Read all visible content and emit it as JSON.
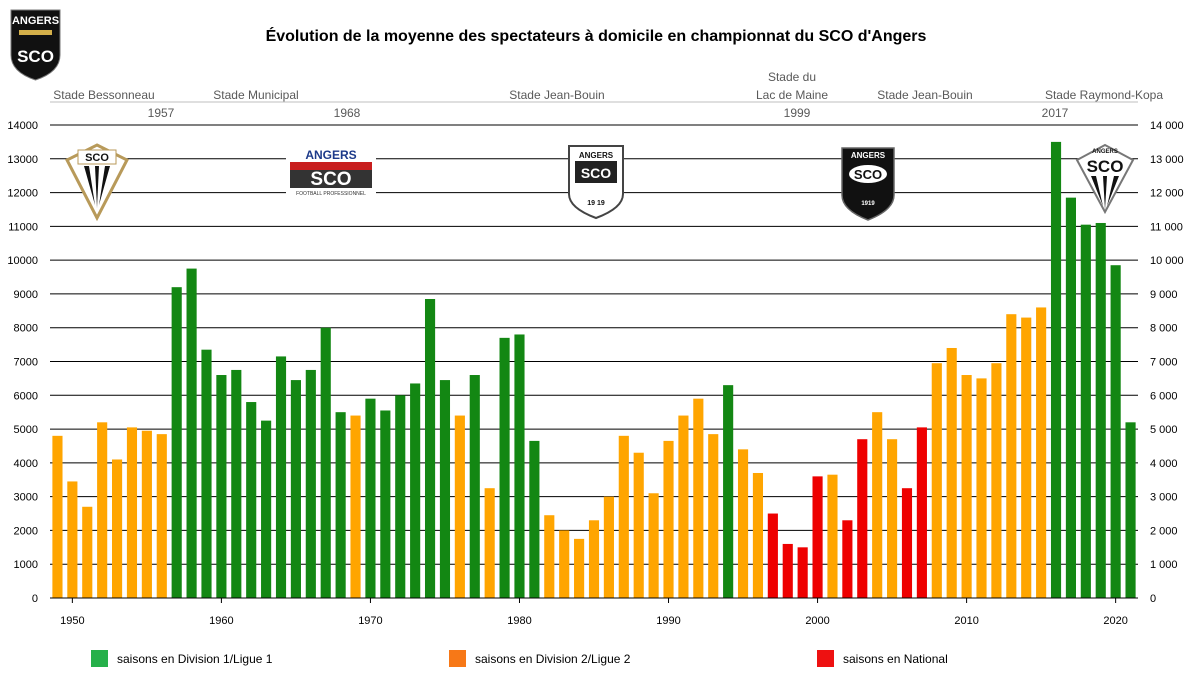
{
  "colors": {
    "d1": "#138713",
    "d2": "#FFA500",
    "national": "#EE0000",
    "legend_d1": "#26B04A",
    "legend_d2": "#F77817",
    "legend_national": "#EE1111"
  },
  "logos": {
    "club_top": {
      "line1": "ANGERS",
      "line2": "SCO"
    },
    "sco_1": {
      "text": "SCO"
    },
    "sco_2": {
      "line1": "ANGERS",
      "line2": "SCO",
      "line3": "FOOTBALL PROFESSIONNEL"
    },
    "sco_3": {
      "line1": "ANGERS",
      "line2": "SCO",
      "line3": "19 19"
    },
    "sco_4": {
      "line1": "ANGERS",
      "line2": "SCO",
      "line3": "1919"
    },
    "sco_5": {
      "line1": "ANGERS",
      "line2": "SCO"
    }
  },
  "stadiums": [
    {
      "name": "Stade Bessonneau",
      "year": "1957"
    },
    {
      "name": "Stade Municipal",
      "year": "1968"
    },
    {
      "name": "Stade Jean-Bouin",
      "year": ""
    },
    {
      "name_line1": "Stade du",
      "name": "Lac de Maine",
      "year": "1999"
    },
    {
      "name": "Stade Jean-Bouin",
      "year": ""
    },
    {
      "name": "Stade Raymond-Kopa",
      "year": "2017"
    }
  ],
  "chart_data": {
    "type": "bar",
    "title": "Évolution de la moyenne des spectateurs à domicile en championnat du SCO d'Angers",
    "xlabel": "",
    "ylabel": "",
    "ylim": [
      0,
      14000
    ],
    "xlim": [
      1948.5,
      2021.5
    ],
    "yticks": [
      0,
      1000,
      2000,
      3000,
      4000,
      5000,
      6000,
      7000,
      8000,
      9000,
      10000,
      11000,
      12000,
      13000,
      14000
    ],
    "ytick_labels_left": [
      "0",
      "1000",
      "2000",
      "3000",
      "4000",
      "5000",
      "6000",
      "7000",
      "8000",
      "9000",
      "10000",
      "11000",
      "12000",
      "13000",
      "14000"
    ],
    "ytick_labels_right": [
      "0",
      "1 000",
      "2 000",
      "3 000",
      "4 000",
      "5 000",
      "6 000",
      "7 000",
      "8 000",
      "9 000",
      "10 000",
      "11 000",
      "12 000",
      "13 000",
      "14 000"
    ],
    "xticks": [
      1950,
      1960,
      1970,
      1980,
      1990,
      2000,
      2010,
      2020
    ],
    "xtick_labels": [
      "1950",
      "1960",
      "1970",
      "1980",
      "1990",
      "2000",
      "2010",
      "2020"
    ],
    "grid": true,
    "legend_position": "bottom",
    "legend": [
      {
        "key": "d1",
        "label": "saisons en Division 1/Ligue 1"
      },
      {
        "key": "d2",
        "label": "saisons en Division 2/Ligue 2"
      },
      {
        "key": "national",
        "label": "saisons en National"
      }
    ],
    "years": [
      1949,
      1950,
      1951,
      1952,
      1953,
      1954,
      1955,
      1956,
      1957,
      1958,
      1959,
      1960,
      1961,
      1962,
      1963,
      1964,
      1965,
      1966,
      1967,
      1968,
      1969,
      1970,
      1971,
      1972,
      1973,
      1974,
      1975,
      1976,
      1977,
      1978,
      1979,
      1980,
      1981,
      1982,
      1983,
      1984,
      1985,
      1986,
      1987,
      1988,
      1989,
      1990,
      1991,
      1992,
      1993,
      1994,
      1995,
      1996,
      1997,
      1998,
      1999,
      2000,
      2001,
      2002,
      2003,
      2004,
      2005,
      2006,
      2007,
      2008,
      2009,
      2010,
      2011,
      2012,
      2013,
      2014,
      2015,
      2016,
      2017,
      2018,
      2019,
      2020,
      2021
    ],
    "values": [
      4800,
      3450,
      2700,
      5200,
      4100,
      5050,
      4950,
      4850,
      9200,
      9750,
      7350,
      6600,
      6750,
      5800,
      5250,
      7150,
      6450,
      6750,
      8000,
      5500,
      5400,
      5900,
      5550,
      6000,
      6350,
      8850,
      6450,
      5400,
      6600,
      3250,
      7700,
      7800,
      4650,
      2450,
      2000,
      1750,
      2300,
      3000,
      4800,
      4300,
      3100,
      4650,
      5400,
      5900,
      4850,
      6300,
      4400,
      3700,
      2500,
      1600,
      1500,
      3600,
      3650,
      2300,
      4700,
      5500,
      4700,
      3250,
      5050,
      6950,
      7400,
      6600,
      6500,
      6950,
      8400,
      8300,
      8600,
      13500,
      11850,
      11050,
      11100,
      9850,
      5200
    ],
    "divisions": [
      "d2",
      "d2",
      "d2",
      "d2",
      "d2",
      "d2",
      "d2",
      "d2",
      "d1",
      "d1",
      "d1",
      "d1",
      "d1",
      "d1",
      "d1",
      "d1",
      "d1",
      "d1",
      "d1",
      "d1",
      "d2",
      "d1",
      "d1",
      "d1",
      "d1",
      "d1",
      "d1",
      "d2",
      "d1",
      "d2",
      "d1",
      "d1",
      "d1",
      "d2",
      "d2",
      "d2",
      "d2",
      "d2",
      "d2",
      "d2",
      "d2",
      "d2",
      "d2",
      "d2",
      "d2",
      "d1",
      "d2",
      "d2",
      "national",
      "national",
      "national",
      "national",
      "d2",
      "national",
      "national",
      "d2",
      "d2",
      "national",
      "national",
      "d2",
      "d2",
      "d2",
      "d2",
      "d2",
      "d2",
      "d2",
      "d2",
      "d1",
      "d1",
      "d1",
      "d1",
      "d1",
      "d1"
    ]
  }
}
